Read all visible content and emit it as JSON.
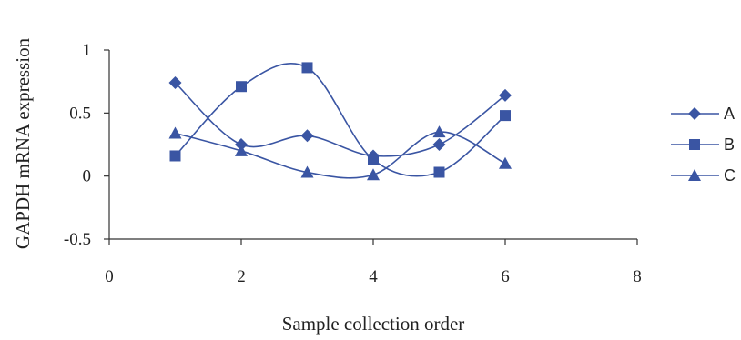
{
  "chart_data": {
    "type": "line",
    "xlabel": "Sample collection order",
    "ylabel": "GAPDH mRNA expression",
    "xlim": [
      0,
      8
    ],
    "ylim": [
      -0.5,
      1
    ],
    "x_ticks": [
      "0",
      "2",
      "4",
      "6",
      "8"
    ],
    "y_ticks": [
      "1",
      "0.5",
      "0",
      "-0.5"
    ],
    "grid": false,
    "legend_position": "right",
    "line_color": "#3a55a3",
    "x": [
      1,
      2,
      3,
      4,
      5,
      6
    ],
    "series": [
      {
        "name": "A",
        "marker": "diamond",
        "values": [
          0.74,
          0.25,
          0.32,
          0.16,
          0.25,
          0.64
        ]
      },
      {
        "name": "B",
        "marker": "square",
        "values": [
          0.16,
          0.71,
          0.86,
          0.13,
          0.03,
          0.48
        ]
      },
      {
        "name": "C",
        "marker": "triangle",
        "values": [
          0.34,
          0.2,
          0.03,
          0.01,
          0.35,
          0.1
        ]
      }
    ]
  }
}
